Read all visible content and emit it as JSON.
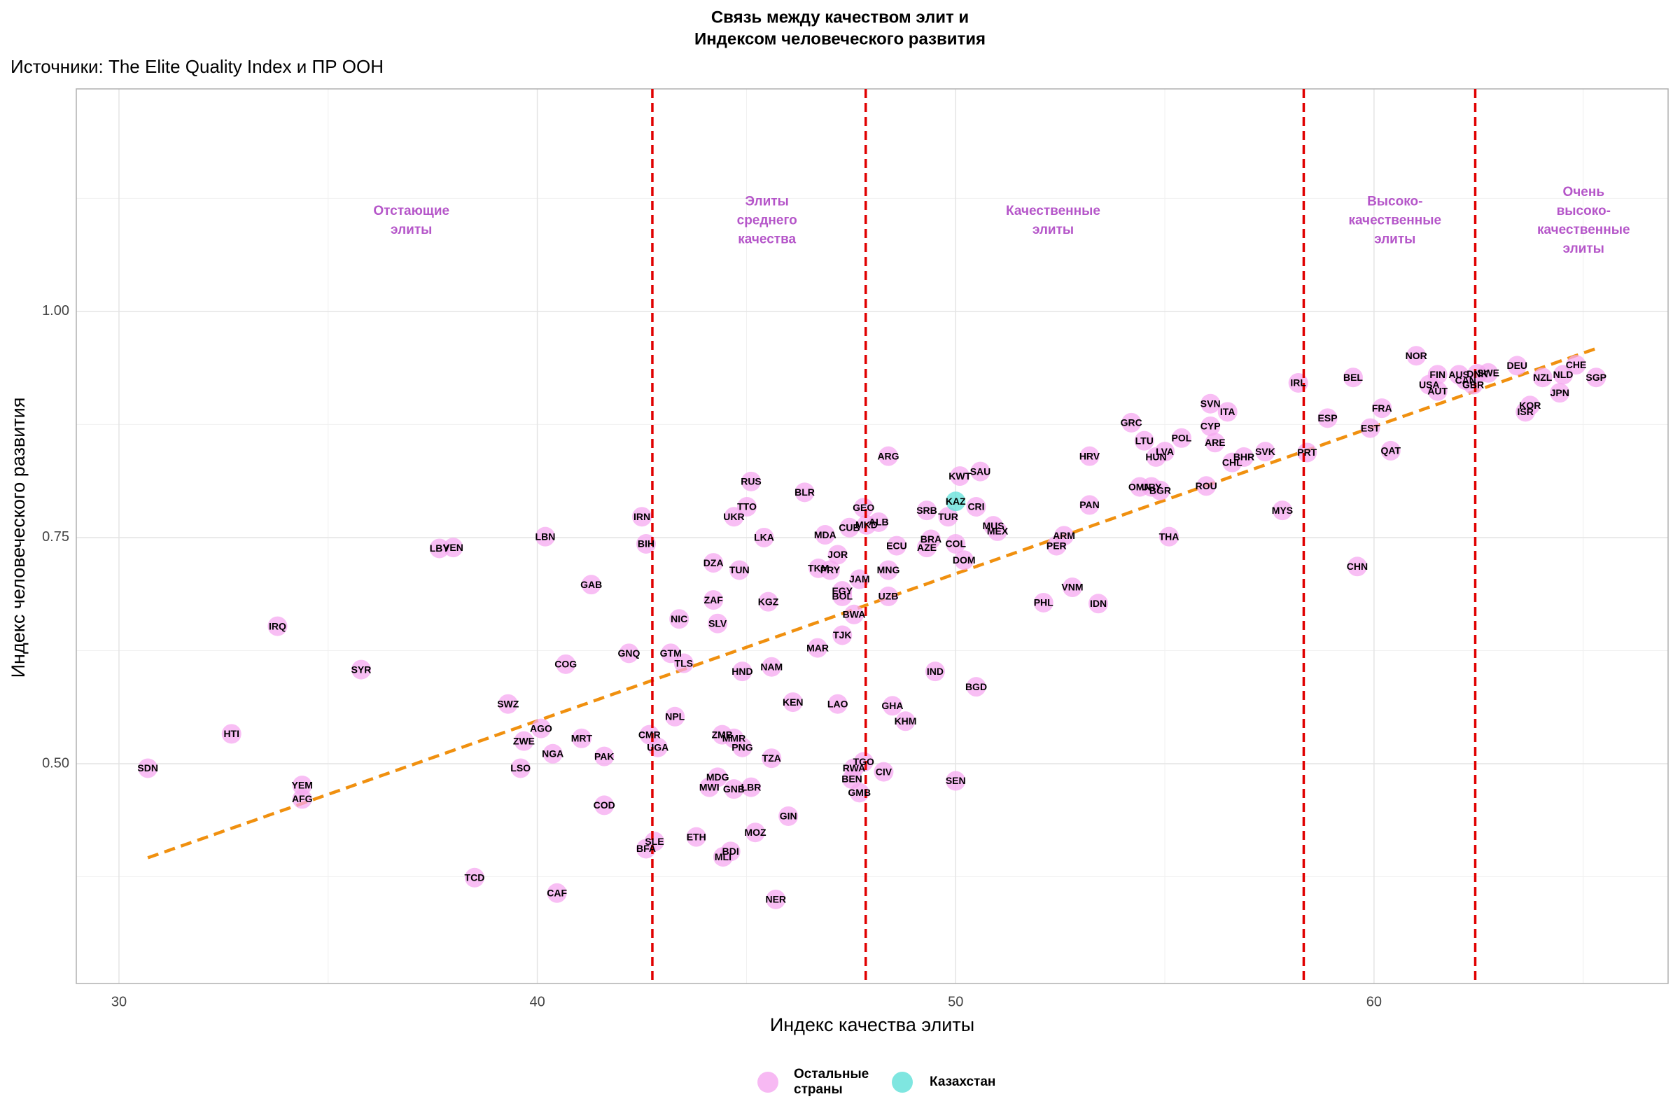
{
  "chart_data": {
    "type": "scatter",
    "title": [
      "Связь между качеством элит и",
      "Индексом человеческого развития"
    ],
    "subtitle": "Источники: The Elite Quality Index и ПР ООН",
    "xlabel": "Индекс качества элиты",
    "ylabel": "Индекс человеческого развития",
    "xlim": [
      28.98,
      67.03
    ],
    "ylim": [
      0.257,
      1.246
    ],
    "xticks": [
      30,
      40,
      50,
      60
    ],
    "yticks": [
      {
        "value": 0.5,
        "label": "0.50"
      },
      {
        "value": 0.75,
        "label": "0.75"
      },
      {
        "value": 1.0,
        "label": "1.00"
      }
    ],
    "grid": true,
    "legend": "bottom",
    "vlines": {
      "color": "#e00000",
      "x": [
        42.75,
        47.85,
        58.32,
        62.42
      ]
    },
    "trend": {
      "color": "#f0900f",
      "x": [
        30.69,
        65.31
      ],
      "values": [
        0.396,
        0.959
      ]
    },
    "annotations": [
      {
        "text": [
          "Отстающие",
          "элиты"
        ],
        "x": 36.99,
        "y": 1.1
      },
      {
        "text": [
          "Элиты",
          "среднего",
          "качества"
        ],
        "x": 45.49,
        "y": 1.1
      },
      {
        "text": [
          "Качественные",
          "элиты"
        ],
        "x": 52.33,
        "y": 1.1
      },
      {
        "text": [
          "Высоко-",
          "качественные",
          "элиты"
        ],
        "x": 60.5,
        "y": 1.1
      },
      {
        "text": [
          "Очень",
          "высоко-",
          "качественные",
          "элиты"
        ],
        "x": 65.01,
        "y": 1.1
      }
    ],
    "annotation_color": "#b556c9",
    "series": [
      {
        "name": "Остальные страны",
        "color": "#f5a8f0",
        "labels": [
          "SDN",
          "HTI",
          "IRQ",
          "SYR",
          "YEM",
          "AFG",
          "LBY",
          "VEN",
          "TCD",
          "SWZ",
          "ZWE",
          "AGO",
          "LSO",
          "NGA",
          "LBN",
          "COG",
          "CAF",
          "MRT",
          "PAK",
          "GAB",
          "COD",
          "GNQ",
          "IRN",
          "BIH",
          "CMR",
          "UGA",
          "BFA",
          "SLE",
          "GTM",
          "TLS",
          "NIC",
          "NPL",
          "ETH",
          "DZA",
          "ZAF",
          "SLV",
          "TUN",
          "ZMB",
          "MMR",
          "PNG",
          "MDG",
          "MWI",
          "GNB",
          "LBR",
          "MLI",
          "BDI",
          "MOZ",
          "UKR",
          "TTO",
          "RUS",
          "LKA",
          "KGZ",
          "HND",
          "NAM",
          "TZA",
          "NER",
          "GIN",
          "KEN",
          "BLR",
          "MDA",
          "TKM",
          "PRY",
          "JOR",
          "MAR",
          "LAO",
          "EGY",
          "BOL",
          "JAM",
          "BWA",
          "TJK",
          "CUB",
          "GEO",
          "MKD",
          "ALB",
          "TGO",
          "RWA",
          "BEN",
          "GMB",
          "CIV",
          "ARG",
          "ECU",
          "MNG",
          "UZB",
          "GHA",
          "KHM",
          "SRB",
          "BRA",
          "AZE",
          "TUR",
          "KWT",
          "COL",
          "DOM",
          "IND",
          "SEN",
          "SAU",
          "CRI",
          "BGD",
          "MUS",
          "MEX",
          "ARM",
          "PER",
          "PHL",
          "VNM",
          "IDN",
          "HRV",
          "PAN",
          "GRC",
          "LTU",
          "HUN",
          "LVA",
          "OMN",
          "URY",
          "BGR",
          "THA",
          "POL",
          "SVN",
          "CYP",
          "ITA",
          "ARE",
          "CHL",
          "BHR",
          "ROU",
          "SVK",
          "MYS",
          "IRL",
          "PRT",
          "ESP",
          "FRA",
          "BEL",
          "EST",
          "CHN",
          "QAT",
          "NOR",
          "FIN",
          "USA",
          "AUT",
          "AUS",
          "CAN",
          "DNK",
          "GBR",
          "SWE",
          "DEU",
          "NZL",
          "CHE",
          "NLD",
          "SGP",
          "KOR",
          "ISR",
          "JPN"
        ],
        "x": [
          30.69,
          32.69,
          33.79,
          35.79,
          34.38,
          34.38,
          37.66,
          37.99,
          38.5,
          39.3,
          39.68,
          40.09,
          39.6,
          40.37,
          40.19,
          40.68,
          40.47,
          41.06,
          41.6,
          41.29,
          41.6,
          42.19,
          42.5,
          42.6,
          42.68,
          42.88,
          42.6,
          42.8,
          43.19,
          43.5,
          43.39,
          43.29,
          43.8,
          44.21,
          44.21,
          44.31,
          44.83,
          44.42,
          44.7,
          44.9,
          44.31,
          44.11,
          44.7,
          45.11,
          44.44,
          44.62,
          45.21,
          44.7,
          45.01,
          45.11,
          45.42,
          45.52,
          44.9,
          45.6,
          45.6,
          45.7,
          46.0,
          46.11,
          46.39,
          46.88,
          46.72,
          47.0,
          47.18,
          46.7,
          47.18,
          47.29,
          47.29,
          47.7,
          47.57,
          47.29,
          47.46,
          47.8,
          47.87,
          48.16,
          47.8,
          47.57,
          47.52,
          47.7,
          48.28,
          48.39,
          48.59,
          48.39,
          48.39,
          48.49,
          48.8,
          49.31,
          49.41,
          49.31,
          49.82,
          50.1,
          50.0,
          50.2,
          49.51,
          50.0,
          50.59,
          50.49,
          50.49,
          50.9,
          51.0,
          52.59,
          52.41,
          52.1,
          52.79,
          53.41,
          53.2,
          53.2,
          54.2,
          54.51,
          54.79,
          55.0,
          54.4,
          54.68,
          54.89,
          55.1,
          55.4,
          56.09,
          56.09,
          56.5,
          56.2,
          56.61,
          56.89,
          55.99,
          57.4,
          57.81,
          58.19,
          58.4,
          58.89,
          60.19,
          59.5,
          59.91,
          59.6,
          60.4,
          61.01,
          61.52,
          61.32,
          61.52,
          62.03,
          62.19,
          62.47,
          62.37,
          62.73,
          63.42,
          64.03,
          64.83,
          64.52,
          65.31,
          63.73,
          63.62,
          64.44
        ],
        "values": [
          0.495,
          0.533,
          0.652,
          0.604,
          0.476,
          0.461,
          0.738,
          0.739,
          0.374,
          0.566,
          0.525,
          0.539,
          0.495,
          0.511,
          0.751,
          0.61,
          0.357,
          0.528,
          0.508,
          0.698,
          0.454,
          0.622,
          0.773,
          0.743,
          0.532,
          0.518,
          0.406,
          0.414,
          0.622,
          0.611,
          0.66,
          0.552,
          0.419,
          0.722,
          0.681,
          0.655,
          0.714,
          0.532,
          0.528,
          0.518,
          0.485,
          0.474,
          0.472,
          0.474,
          0.397,
          0.403,
          0.424,
          0.773,
          0.784,
          0.812,
          0.75,
          0.679,
          0.602,
          0.607,
          0.506,
          0.35,
          0.442,
          0.568,
          0.8,
          0.753,
          0.716,
          0.714,
          0.731,
          0.628,
          0.566,
          0.691,
          0.685,
          0.704,
          0.665,
          0.642,
          0.761,
          0.783,
          0.764,
          0.767,
          0.502,
          0.495,
          0.483,
          0.468,
          0.491,
          0.84,
          0.741,
          0.714,
          0.685,
          0.564,
          0.547,
          0.78,
          0.748,
          0.739,
          0.773,
          0.818,
          0.743,
          0.725,
          0.602,
          0.481,
          0.823,
          0.784,
          0.585,
          0.763,
          0.757,
          0.752,
          0.741,
          0.678,
          0.695,
          0.677,
          0.84,
          0.786,
          0.877,
          0.857,
          0.839,
          0.845,
          0.806,
          0.806,
          0.802,
          0.751,
          0.86,
          0.898,
          0.873,
          0.889,
          0.855,
          0.833,
          0.839,
          0.807,
          0.845,
          0.78,
          0.921,
          0.844,
          0.882,
          0.893,
          0.927,
          0.871,
          0.718,
          0.846,
          0.951,
          0.93,
          0.919,
          0.912,
          0.93,
          0.924,
          0.931,
          0.919,
          0.932,
          0.94,
          0.927,
          0.941,
          0.93,
          0.927,
          0.896,
          0.889,
          0.91
        ]
      },
      {
        "name": "Казахстан",
        "color": "#5fe0d8",
        "labels": [
          "KAZ"
        ],
        "x": [
          50.0
        ],
        "values": [
          0.79
        ]
      }
    ]
  }
}
